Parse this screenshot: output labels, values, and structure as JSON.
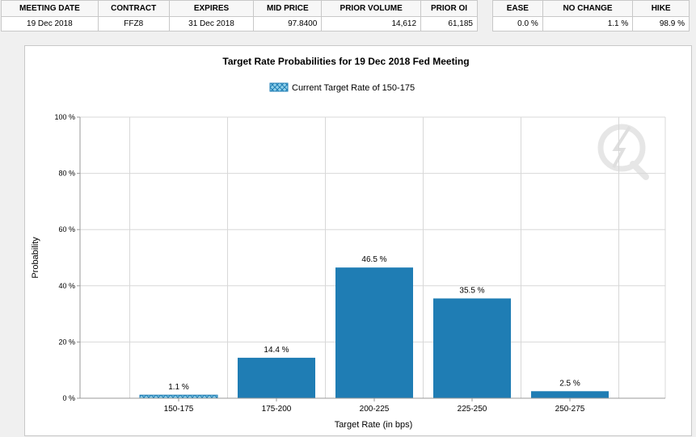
{
  "meeting_table": {
    "headers": [
      "MEETING DATE",
      "CONTRACT",
      "EXPIRES",
      "MID PRICE",
      "PRIOR VOLUME",
      "PRIOR OI"
    ],
    "row": [
      "19 Dec 2018",
      "FFZ8",
      "31 Dec 2018",
      "97.8400",
      "14,612",
      "61,185"
    ]
  },
  "probability_table": {
    "headers": [
      "EASE",
      "NO CHANGE",
      "HIKE"
    ],
    "row": [
      "0.0 %",
      "1.1 %",
      "98.9 %"
    ]
  },
  "colors": {
    "bar": "#1f7db4",
    "current_bar_pattern_bg": "#8fd0ea",
    "grid": "#d8d8d8"
  },
  "chart_data": {
    "type": "bar",
    "title": "Target Rate Probabilities for 19 Dec 2018 Fed Meeting",
    "legend": {
      "label": "Current Target Rate of 150-175",
      "placement": "top-center"
    },
    "xlabel": "Target Rate (in bps)",
    "ylabel": "Probability",
    "categories": [
      "150-175",
      "175-200",
      "200-225",
      "225-250",
      "250-275"
    ],
    "values": [
      1.1,
      14.4,
      46.5,
      35.5,
      2.5
    ],
    "data_labels": [
      "1.1 %",
      "14.4 %",
      "46.5 %",
      "35.5 %",
      "2.5 %"
    ],
    "current_category": "150-175",
    "ylim": [
      0,
      100
    ],
    "yticks": [
      0,
      20,
      40,
      60,
      80,
      100
    ],
    "ytick_labels": [
      "0 %",
      "20 %",
      "40 %",
      "60 %",
      "80 %",
      "100 %"
    ],
    "grid": true
  }
}
